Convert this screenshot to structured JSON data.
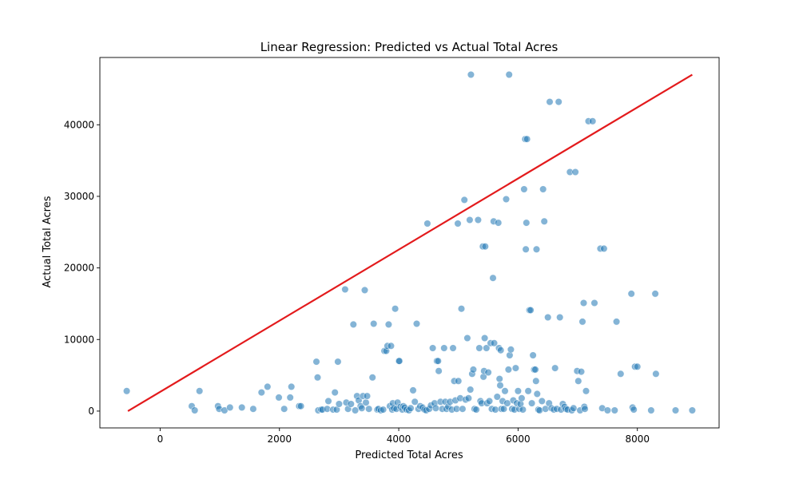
{
  "chart_data": {
    "type": "scatter",
    "title": "Linear Regression: Predicted vs Actual Total Acres",
    "xlabel": "Predicted Total Acres",
    "ylabel": "Actual Total Acres",
    "xlim": [
      -1010,
      9370
    ],
    "ylim": [
      -2350,
      49400
    ],
    "xticks": [
      0,
      2000,
      4000,
      6000,
      8000
    ],
    "yticks": [
      0,
      10000,
      20000,
      30000,
      40000
    ],
    "grid": false,
    "legend": "none",
    "point_color": "#1f77b4",
    "point_opacity": 0.55,
    "line_color": "#e31a1c",
    "fit_line": {
      "x": [
        -540,
        8920
      ],
      "y": [
        0,
        47000
      ]
    },
    "points": [
      [
        -560,
        2800
      ],
      [
        530,
        700
      ],
      [
        580,
        100
      ],
      [
        660,
        2800
      ],
      [
        970,
        700
      ],
      [
        990,
        300
      ],
      [
        1080,
        100
      ],
      [
        1170,
        500
      ],
      [
        1370,
        500
      ],
      [
        1560,
        300
      ],
      [
        1700,
        2600
      ],
      [
        1800,
        3400
      ],
      [
        1990,
        1900
      ],
      [
        2080,
        300
      ],
      [
        2180,
        1900
      ],
      [
        2200,
        3400
      ],
      [
        2330,
        700
      ],
      [
        2360,
        700
      ],
      [
        2620,
        6900
      ],
      [
        2640,
        4700
      ],
      [
        2650,
        100
      ],
      [
        2700,
        200
      ],
      [
        2720,
        200
      ],
      [
        2800,
        300
      ],
      [
        2820,
        1400
      ],
      [
        2900,
        200
      ],
      [
        2930,
        2600
      ],
      [
        2960,
        200
      ],
      [
        2980,
        6900
      ],
      [
        3000,
        1000
      ],
      [
        3100,
        17000
      ],
      [
        3120,
        1200
      ],
      [
        3150,
        300
      ],
      [
        3200,
        1000
      ],
      [
        3240,
        12100
      ],
      [
        3270,
        100
      ],
      [
        3300,
        2100
      ],
      [
        3330,
        1500
      ],
      [
        3360,
        700
      ],
      [
        3380,
        400
      ],
      [
        3400,
        2100
      ],
      [
        3430,
        16900
      ],
      [
        3450,
        1200
      ],
      [
        3470,
        2100
      ],
      [
        3500,
        300
      ],
      [
        3560,
        4700
      ],
      [
        3580,
        12200
      ],
      [
        3640,
        200
      ],
      [
        3660,
        300
      ],
      [
        3700,
        100
      ],
      [
        3740,
        200
      ],
      [
        3760,
        8400
      ],
      [
        3790,
        8400
      ],
      [
        3810,
        9100
      ],
      [
        3830,
        12100
      ],
      [
        3850,
        700
      ],
      [
        3870,
        9100
      ],
      [
        3890,
        200
      ],
      [
        3900,
        1100
      ],
      [
        3920,
        400
      ],
      [
        3940,
        14300
      ],
      [
        3960,
        300
      ],
      [
        3980,
        1200
      ],
      [
        4000,
        7000
      ],
      [
        4010,
        7000
      ],
      [
        4030,
        600
      ],
      [
        4060,
        200
      ],
      [
        4080,
        700
      ],
      [
        4100,
        500
      ],
      [
        4130,
        200
      ],
      [
        4170,
        100
      ],
      [
        4200,
        400
      ],
      [
        4240,
        2900
      ],
      [
        4270,
        1300
      ],
      [
        4300,
        12200
      ],
      [
        4330,
        300
      ],
      [
        4360,
        700
      ],
      [
        4400,
        500
      ],
      [
        4430,
        200
      ],
      [
        4460,
        100
      ],
      [
        4480,
        26200
      ],
      [
        4510,
        300
      ],
      [
        4540,
        800
      ],
      [
        4570,
        8800
      ],
      [
        4600,
        1100
      ],
      [
        4620,
        400
      ],
      [
        4640,
        7000
      ],
      [
        4660,
        7000
      ],
      [
        4670,
        5600
      ],
      [
        4700,
        1300
      ],
      [
        4730,
        300
      ],
      [
        4760,
        8800
      ],
      [
        4780,
        1300
      ],
      [
        4800,
        300
      ],
      [
        4830,
        600
      ],
      [
        4860,
        1300
      ],
      [
        4890,
        200
      ],
      [
        4910,
        8800
      ],
      [
        4930,
        4200
      ],
      [
        4950,
        1500
      ],
      [
        4970,
        300
      ],
      [
        4990,
        26200
      ],
      [
        5000,
        4200
      ],
      [
        5030,
        1800
      ],
      [
        5050,
        14300
      ],
      [
        5070,
        300
      ],
      [
        5100,
        29500
      ],
      [
        5120,
        1600
      ],
      [
        5150,
        10200
      ],
      [
        5170,
        1800
      ],
      [
        5190,
        26700
      ],
      [
        5200,
        3000
      ],
      [
        5210,
        47000
      ],
      [
        5230,
        5200
      ],
      [
        5250,
        5800
      ],
      [
        5270,
        300
      ],
      [
        5300,
        200
      ],
      [
        5330,
        26700
      ],
      [
        5350,
        8800
      ],
      [
        5370,
        1400
      ],
      [
        5390,
        1100
      ],
      [
        5410,
        23000
      ],
      [
        5420,
        4800
      ],
      [
        5430,
        5600
      ],
      [
        5440,
        10200
      ],
      [
        5450,
        23000
      ],
      [
        5470,
        8800
      ],
      [
        5480,
        1100
      ],
      [
        5500,
        5400
      ],
      [
        5520,
        1400
      ],
      [
        5540,
        9500
      ],
      [
        5560,
        300
      ],
      [
        5580,
        18600
      ],
      [
        5590,
        26500
      ],
      [
        5600,
        9500
      ],
      [
        5620,
        200
      ],
      [
        5650,
        2000
      ],
      [
        5670,
        26300
      ],
      [
        5680,
        8800
      ],
      [
        5690,
        4500
      ],
      [
        5700,
        3600
      ],
      [
        5710,
        8500
      ],
      [
        5720,
        300
      ],
      [
        5740,
        1400
      ],
      [
        5760,
        300
      ],
      [
        5780,
        2800
      ],
      [
        5800,
        29600
      ],
      [
        5820,
        1100
      ],
      [
        5840,
        5800
      ],
      [
        5850,
        47000
      ],
      [
        5860,
        7800
      ],
      [
        5880,
        8600
      ],
      [
        5900,
        300
      ],
      [
        5920,
        1500
      ],
      [
        5940,
        200
      ],
      [
        5960,
        6000
      ],
      [
        5980,
        1100
      ],
      [
        6000,
        2800
      ],
      [
        6020,
        300
      ],
      [
        6040,
        1000
      ],
      [
        6060,
        1800
      ],
      [
        6080,
        200
      ],
      [
        6100,
        31000
      ],
      [
        6120,
        38000
      ],
      [
        6130,
        22600
      ],
      [
        6140,
        26300
      ],
      [
        6150,
        38000
      ],
      [
        6170,
        2800
      ],
      [
        6190,
        14100
      ],
      [
        6210,
        14100
      ],
      [
        6230,
        1100
      ],
      [
        6250,
        7800
      ],
      [
        6270,
        5800
      ],
      [
        6290,
        5800
      ],
      [
        6300,
        4200
      ],
      [
        6310,
        22600
      ],
      [
        6320,
        2400
      ],
      [
        6340,
        200
      ],
      [
        6360,
        100
      ],
      [
        6400,
        1400
      ],
      [
        6420,
        31000
      ],
      [
        6440,
        26500
      ],
      [
        6460,
        300
      ],
      [
        6500,
        13100
      ],
      [
        6520,
        1100
      ],
      [
        6530,
        43200
      ],
      [
        6560,
        400
      ],
      [
        6600,
        200
      ],
      [
        6620,
        6000
      ],
      [
        6650,
        300
      ],
      [
        6680,
        43200
      ],
      [
        6700,
        13100
      ],
      [
        6720,
        200
      ],
      [
        6750,
        1000
      ],
      [
        6780,
        600
      ],
      [
        6800,
        300
      ],
      [
        6830,
        200
      ],
      [
        6870,
        33400
      ],
      [
        6900,
        100
      ],
      [
        6930,
        400
      ],
      [
        6960,
        33400
      ],
      [
        6990,
        5600
      ],
      [
        7010,
        4200
      ],
      [
        7040,
        100
      ],
      [
        7060,
        5500
      ],
      [
        7080,
        12500
      ],
      [
        7100,
        15100
      ],
      [
        7110,
        600
      ],
      [
        7120,
        300
      ],
      [
        7140,
        2800
      ],
      [
        7180,
        40500
      ],
      [
        7250,
        40500
      ],
      [
        7280,
        15100
      ],
      [
        7380,
        22700
      ],
      [
        7410,
        400
      ],
      [
        7440,
        22700
      ],
      [
        7500,
        100
      ],
      [
        7620,
        100
      ],
      [
        7650,
        12500
      ],
      [
        7720,
        5200
      ],
      [
        7900,
        16400
      ],
      [
        7920,
        500
      ],
      [
        7940,
        200
      ],
      [
        7960,
        6200
      ],
      [
        8000,
        6200
      ],
      [
        8230,
        100
      ],
      [
        8300,
        16400
      ],
      [
        8310,
        5200
      ],
      [
        8640,
        100
      ],
      [
        8920,
        100
      ]
    ]
  }
}
